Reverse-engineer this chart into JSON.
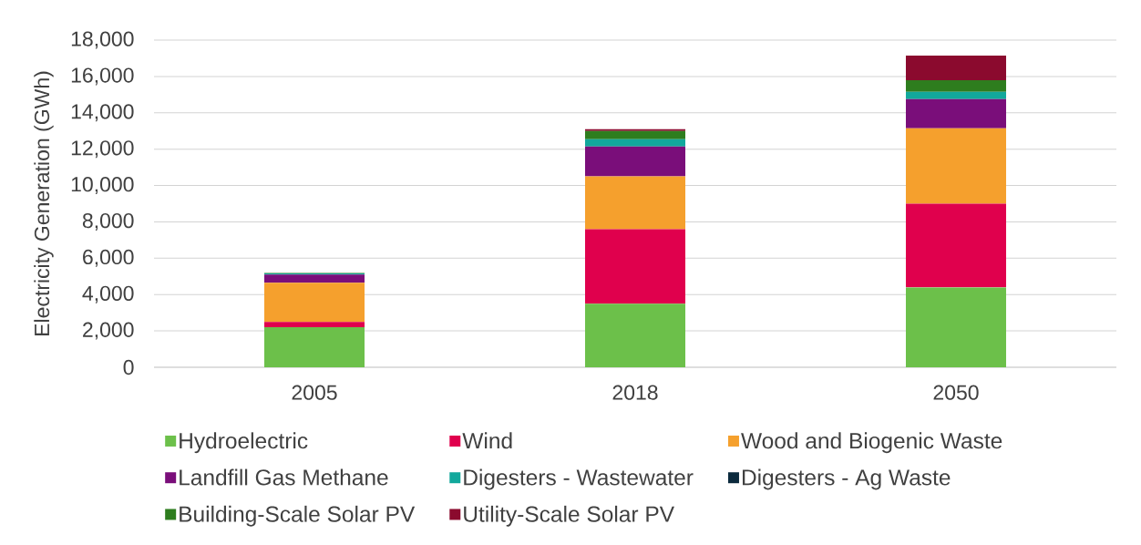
{
  "chart_data": {
    "type": "bar",
    "stacked": true,
    "ylabel": "Electricity Generation (GWh)",
    "categories": [
      "2005",
      "2018",
      "2050"
    ],
    "series": [
      {
        "name": "Hydroelectric",
        "color": "#6cc04a",
        "values": [
          2200,
          3500,
          4400
        ]
      },
      {
        "name": "Wind",
        "color": "#e0004d",
        "values": [
          300,
          4100,
          4600
        ]
      },
      {
        "name": "Wood and Biogenic Waste",
        "color": "#f5a02d",
        "values": [
          2150,
          2900,
          4150
        ]
      },
      {
        "name": "Landfill Gas Methane",
        "color": "#7a0e7a",
        "values": [
          450,
          1650,
          1600
        ]
      },
      {
        "name": "Digesters - Wastewater",
        "color": "#12a89c",
        "values": [
          60,
          400,
          400
        ]
      },
      {
        "name": "Digesters - Ag Waste",
        "color": "#0b2a3d",
        "values": [
          null,
          null,
          null
        ]
      },
      {
        "name": "Building-Scale Solar PV",
        "color": "#2e7d1e",
        "values": [
          30,
          450,
          650
        ]
      },
      {
        "name": "Utility-Scale Solar PV",
        "color": "#8b0a2e",
        "values": [
          null,
          100,
          1350
        ]
      }
    ],
    "ylim": [
      0,
      18000
    ],
    "yticks": [
      0,
      {
        "value": 2000,
        "label": "2,000"
      },
      {
        "value": 4000,
        "label": "4,000"
      },
      {
        "value": 6000,
        "label": "6,000"
      },
      {
        "value": 8000,
        "label": "8,000"
      },
      {
        "value": 10000,
        "label": "10,000"
      },
      {
        "value": 12000,
        "label": "12,000"
      },
      {
        "value": 14000,
        "label": "14,000"
      },
      {
        "value": 16000,
        "label": "16,000"
      },
      {
        "value": 18000,
        "label": "18,000"
      }
    ],
    "grid": "y",
    "legend": "bottom"
  }
}
